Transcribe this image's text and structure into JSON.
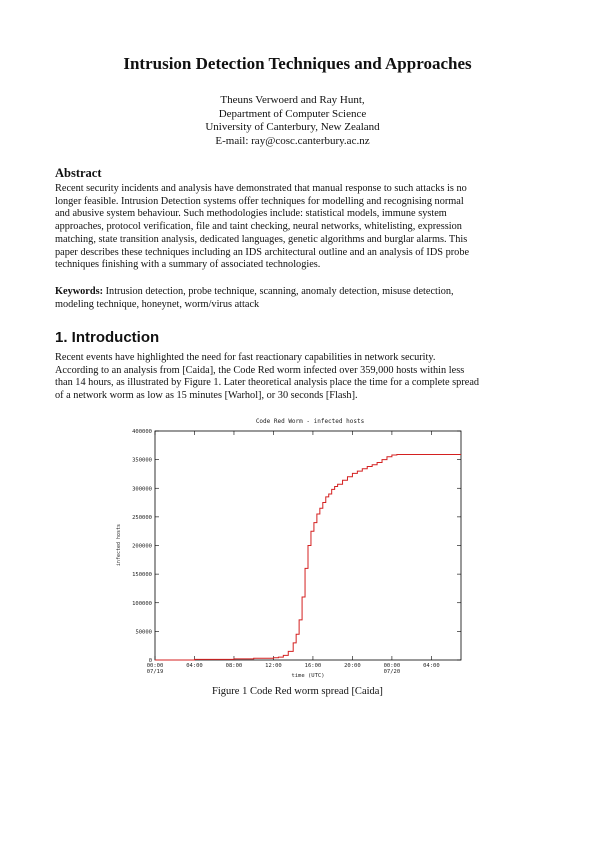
{
  "paper": {
    "title": "Intrusion Detection Techniques and Approaches",
    "authors": [
      "Theuns Verwoerd and Ray Hunt,",
      "Department of Computer Science",
      "University of Canterbury, New Zealand",
      "E-mail: ray@cosc.canterbury.ac.nz"
    ],
    "abstract_heading": "Abstract",
    "abstract_lines": [
      "Recent security incidents and analysis have demonstrated that manual response to such attacks is no",
      "longer feasible.  Intrusion Detection systems offer techniques for modelling and recognising normal",
      "and abusive system behaviour. Such methodologies include: statistical models, immune system",
      "approaches, protocol verification, file and taint checking, neural networks, whitelisting, expression",
      "matching, state transition analysis, dedicated languages, genetic algorithms and burglar alarms.  This",
      "paper describes these techniques including an IDS architectural outline and an analysis of IDS probe",
      "techniques finishing with a summary of associated technologies."
    ],
    "keywords_label": "Keywords:",
    "keywords_lines": [
      " Intrusion detection, probe technique, scanning, anomaly detection, misuse detection,",
      "modeling technique, honeynet, worm/virus attack"
    ],
    "intro_heading": "1. Introduction",
    "intro_lines": [
      "Recent events have highlighted the need for fast reactionary capabilities in network security.",
      "According to an analysis from [Caida], the Code Red worm infected over 359,000 hosts within less",
      "than 14 hours, as illustrated by Figure 1.  Later theoretical analysis place the time for a complete spread",
      "of a network worm as low as 15 minutes [Warhol], or 30 seconds [Flash]."
    ],
    "figure_caption": "Figure 1  Code Red worm spread [Caida]"
  },
  "chart_data": {
    "type": "line",
    "title": "Code Red Worm - infected hosts",
    "xlabel": "time (UTC)",
    "ylabel": "infected hosts",
    "x_tick_labels": [
      "00:00",
      "04:00",
      "08:00",
      "12:00",
      "16:00",
      "20:00",
      "00:00",
      "04:00"
    ],
    "x_tick_sublabels": [
      "07/19",
      "",
      "",
      "",
      "",
      "",
      "07/20",
      ""
    ],
    "x_tick_hours": [
      0,
      4,
      8,
      12,
      16,
      20,
      24,
      28
    ],
    "xlim_hours": [
      0,
      31
    ],
    "y_ticks": [
      0,
      50000,
      100000,
      150000,
      200000,
      250000,
      300000,
      350000,
      400000
    ],
    "y_tick_labels": [
      "0",
      "50000",
      "100000",
      "150000",
      "200000",
      "250000",
      "300000",
      "350000",
      "400000"
    ],
    "ylim": [
      0,
      400000
    ],
    "grid": false,
    "line_color": "#d42020",
    "series": [
      {
        "x_hours": [
          0,
          4,
          8,
          10,
          12,
          12.5,
          13,
          13.5,
          14,
          14.3,
          14.6,
          14.9,
          15.2,
          15.5,
          15.8,
          16.1,
          16.4,
          16.7,
          17.0,
          17.3,
          17.6,
          17.9,
          18.2,
          18.5,
          19.0,
          19.5,
          20.0,
          20.5,
          21.0,
          21.5,
          22.0,
          22.5,
          23.0,
          23.5,
          24.0,
          24.5,
          25.0,
          26.0,
          28.0,
          31.0
        ],
        "values": [
          0,
          1000,
          2000,
          3000,
          4000,
          5000,
          8000,
          15000,
          30000,
          45000,
          70000,
          110000,
          160000,
          200000,
          225000,
          240000,
          255000,
          265000,
          275000,
          285000,
          290000,
          298000,
          303000,
          307000,
          314000,
          320000,
          326000,
          330000,
          334000,
          338000,
          341000,
          345000,
          350000,
          355000,
          358000,
          359000,
          359000,
          359000,
          359000,
          359000
        ]
      }
    ]
  }
}
